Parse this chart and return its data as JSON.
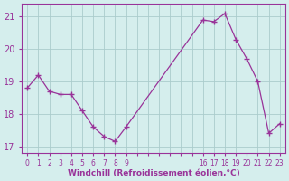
{
  "x": [
    0,
    1,
    2,
    3,
    4,
    5,
    6,
    7,
    8,
    9,
    16,
    17,
    18,
    19,
    20,
    21,
    22,
    23
  ],
  "y": [
    18.8,
    19.2,
    18.7,
    18.6,
    18.6,
    18.1,
    17.6,
    17.3,
    17.15,
    17.6,
    20.9,
    20.85,
    21.1,
    20.3,
    19.7,
    19.0,
    17.4,
    17.7
  ],
  "line_color": "#993399",
  "marker_color": "#993399",
  "bg_color": "#d5eeed",
  "grid_color": "#aacccc",
  "xlabel": "Windchill (Refroidissement éolien,°C)",
  "xlabel_color": "#993399",
  "tick_color": "#993399",
  "ylim": [
    16.8,
    21.4
  ],
  "yticks": [
    17,
    18,
    19,
    20,
    21
  ],
  "xlim": [
    -0.5,
    23.5
  ],
  "xtick_show_positions": [
    0,
    1,
    2,
    3,
    4,
    5,
    6,
    7,
    8,
    9,
    16,
    17,
    18,
    19,
    20,
    21,
    22,
    23
  ],
  "xtick_show_labels": [
    "0",
    "1",
    "2",
    "3",
    "4",
    "5",
    "6",
    "7",
    "8",
    "9",
    "16",
    "17",
    "18",
    "19",
    "20",
    "21",
    "22",
    "23"
  ],
  "all_xtick_positions": [
    0,
    1,
    2,
    3,
    4,
    5,
    6,
    7,
    8,
    9,
    10,
    11,
    12,
    13,
    14,
    15,
    16,
    17,
    18,
    19,
    20,
    21,
    22,
    23
  ]
}
